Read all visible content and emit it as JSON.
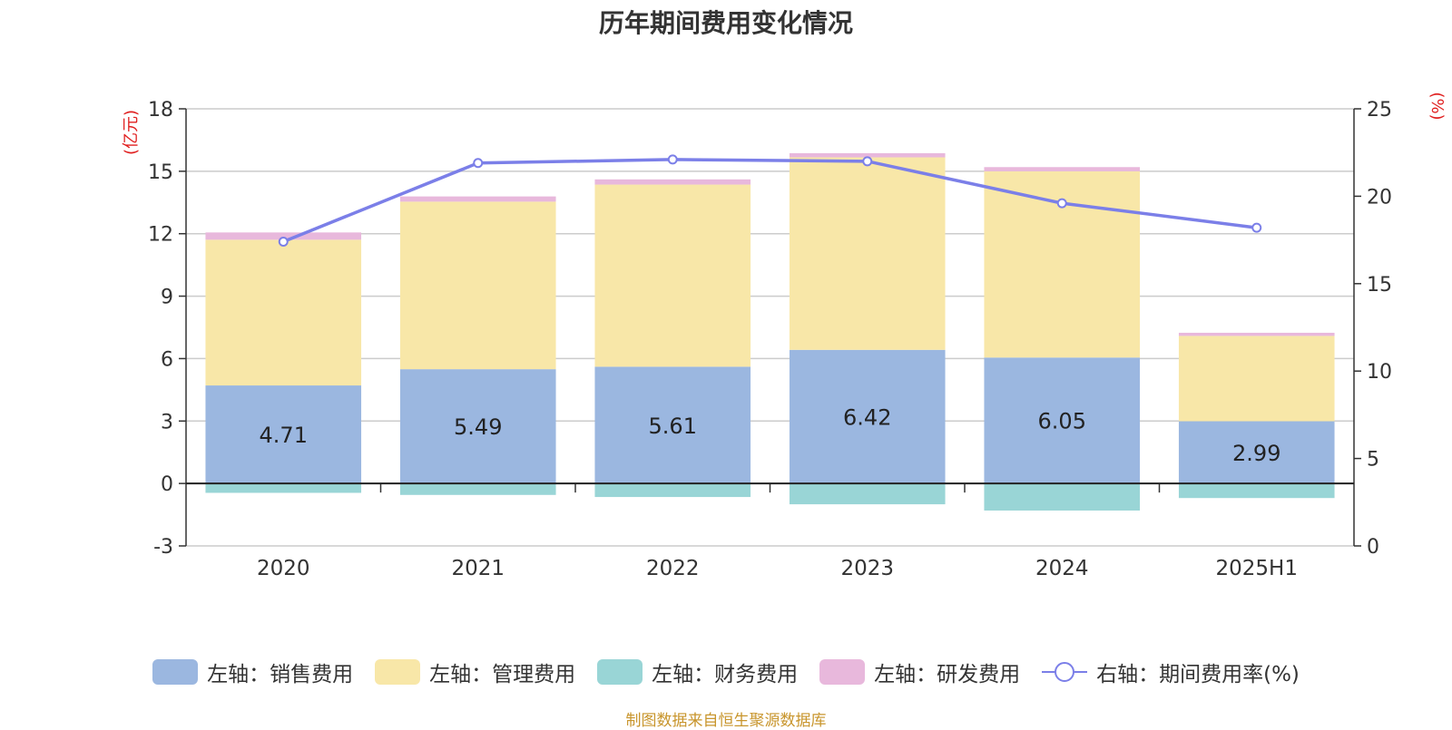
{
  "chart_data": {
    "type": "bar",
    "title": "历年期间费用变化情况",
    "categories": [
      "2020",
      "2021",
      "2022",
      "2023",
      "2024",
      "2025H1"
    ],
    "left_axis": {
      "unit_label": "(亿元)",
      "ylim": [
        -3,
        18
      ],
      "ticks": [
        -3,
        0,
        3,
        6,
        9,
        12,
        15,
        18
      ]
    },
    "right_axis": {
      "unit_label": "(%)",
      "ylim": [
        0,
        25
      ],
      "ticks": [
        0,
        5,
        10,
        15,
        20,
        25
      ]
    },
    "grid": true,
    "legend_position": "bottom",
    "series": [
      {
        "name": "左轴：销售费用",
        "type": "bar",
        "axis": "left",
        "color": "#9bb7e0",
        "values": [
          4.71,
          5.49,
          5.61,
          6.42,
          6.05,
          2.99
        ],
        "data_labels": [
          "4.71",
          "5.49",
          "5.61",
          "6.42",
          "6.05",
          "2.99"
        ]
      },
      {
        "name": "左轴：管理费用",
        "type": "bar",
        "axis": "left",
        "color": "#f8e7a8",
        "values": [
          7.0,
          8.05,
          8.75,
          9.25,
          8.95,
          4.1
        ]
      },
      {
        "name": "左轴：财务费用",
        "type": "bar",
        "axis": "left",
        "color": "#99d5d6",
        "values": [
          -0.45,
          -0.55,
          -0.65,
          -1.0,
          -1.3,
          -0.7
        ]
      },
      {
        "name": "左轴：研发费用",
        "type": "bar",
        "axis": "left",
        "color": "#e8b8dc",
        "values": [
          0.35,
          0.25,
          0.25,
          0.2,
          0.2,
          0.15
        ]
      },
      {
        "name": "右轴：期间费用率(%)",
        "type": "line",
        "axis": "right",
        "color": "#7b7fe8",
        "values": [
          17.4,
          21.9,
          22.1,
          22.0,
          19.6,
          18.2
        ]
      }
    ]
  },
  "source": "制图数据来自恒生聚源数据库"
}
